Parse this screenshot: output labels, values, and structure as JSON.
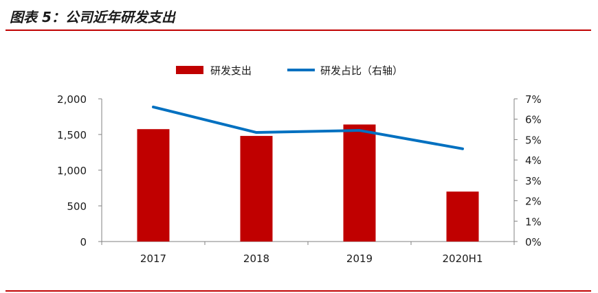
{
  "header": {
    "title": "图表 5：公司近年研发支出"
  },
  "chart_data": {
    "type": "bar",
    "categories": [
      "2017",
      "2018",
      "2019",
      "2020H1"
    ],
    "series": [
      {
        "name": "研发支出",
        "type": "bar",
        "axis": "left",
        "values": [
          1575,
          1480,
          1640,
          700
        ],
        "color": "#c00000"
      },
      {
        "name": "研发占比（右轴）",
        "type": "line",
        "axis": "right",
        "values": [
          6.6,
          5.35,
          5.45,
          4.55
        ],
        "color": "#0070c0"
      }
    ],
    "ylim": [
      0,
      2000
    ],
    "y_ticks": [
      "2,000",
      "1,500",
      "1,000",
      "500",
      "0"
    ],
    "y_tick_values": [
      2000,
      1500,
      1000,
      500,
      0
    ],
    "y2lim": [
      0,
      7
    ],
    "y2_ticks": [
      "7%",
      "6%",
      "5%",
      "4%",
      "3%",
      "2%",
      "1%",
      "0%"
    ],
    "y2_tick_values": [
      7,
      6,
      5,
      4,
      3,
      2,
      1,
      0
    ],
    "grid": false,
    "legend_position": "top-center"
  }
}
